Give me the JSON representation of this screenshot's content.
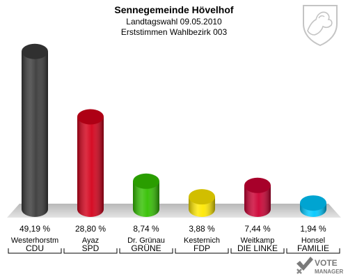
{
  "chart_data": {
    "type": "bar",
    "title": "Sennegemeinde Hövelhof",
    "subtitle": "Landtagswahl 09.05.2010",
    "subtitle2": "Erststimmen Wahlbezirk 003",
    "categories": [
      "Westerhorstm",
      "Ayaz",
      "Dr. Grünau",
      "Kesternich",
      "Weitkamp",
      "Honsel"
    ],
    "parties": [
      "CDU",
      "SPD",
      "GRÜNE",
      "FDP",
      "DIE LINKE",
      "FAMILIE"
    ],
    "values": [
      49.19,
      28.8,
      8.74,
      3.88,
      7.44,
      1.94
    ],
    "value_labels": [
      "49,19 %",
      "28,80 %",
      "8,74 %",
      "3,88 %",
      "7,44 %",
      "1,94 %"
    ],
    "colors": [
      "#3a3a3a",
      "#d4001a",
      "#33c000",
      "#ffe800",
      "#cc0033",
      "#00c8ff"
    ],
    "ylim": [
      0,
      50
    ],
    "grid": false,
    "legend": "none"
  },
  "branding": {
    "logo_text": "VOTE",
    "logo_subtext": "MANAGER"
  }
}
